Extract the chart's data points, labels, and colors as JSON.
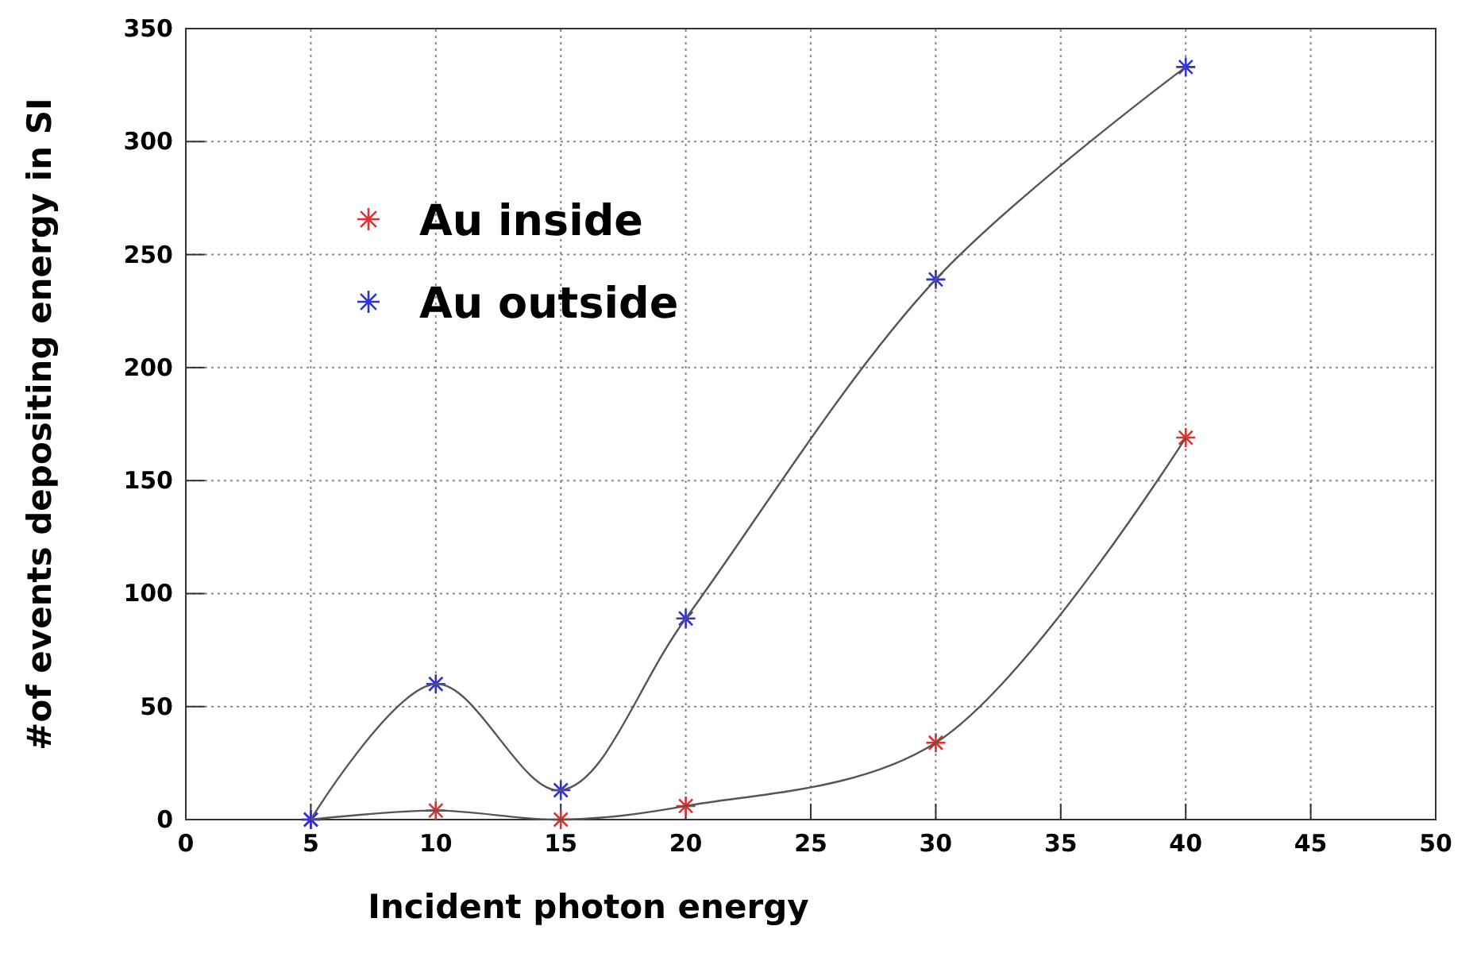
{
  "chart_data": {
    "type": "scatter",
    "xlabel": "Incident photon energy",
    "ylabel": "#of events depositing energy in SI",
    "xlim": [
      0,
      50
    ],
    "xticks": [
      0,
      5,
      10,
      15,
      20,
      25,
      30,
      35,
      40,
      45,
      50
    ],
    "ylim": [
      0,
      350
    ],
    "yticks": [
      0,
      50,
      100,
      150,
      200,
      250,
      300,
      350
    ],
    "grid": true,
    "legend": "top left",
    "marker": "cross",
    "series": [
      {
        "name": "Au inside",
        "color": "#e03030",
        "x": [
          5,
          10,
          15,
          20,
          30,
          40
        ],
        "values": [
          0,
          4,
          0,
          6,
          34,
          169
        ]
      },
      {
        "name": "Au outside",
        "color": "#3030e0",
        "x": [
          5,
          10,
          15,
          20,
          30,
          40
        ],
        "values": [
          0,
          60,
          13,
          89,
          239,
          333
        ]
      },
      {
        "type": "line",
        "color": "#555555",
        "marker": "none",
        "x": [
          5,
          10,
          15,
          20,
          30,
          40
        ],
        "values": [
          0,
          4,
          0,
          6,
          34,
          169
        ]
      },
      {
        "type": "line",
        "color": "#555555",
        "marker": "none",
        "x": [
          5,
          10,
          15,
          20,
          30,
          40
        ],
        "values": [
          0,
          60,
          13,
          89,
          239,
          333
        ]
      }
    ]
  }
}
